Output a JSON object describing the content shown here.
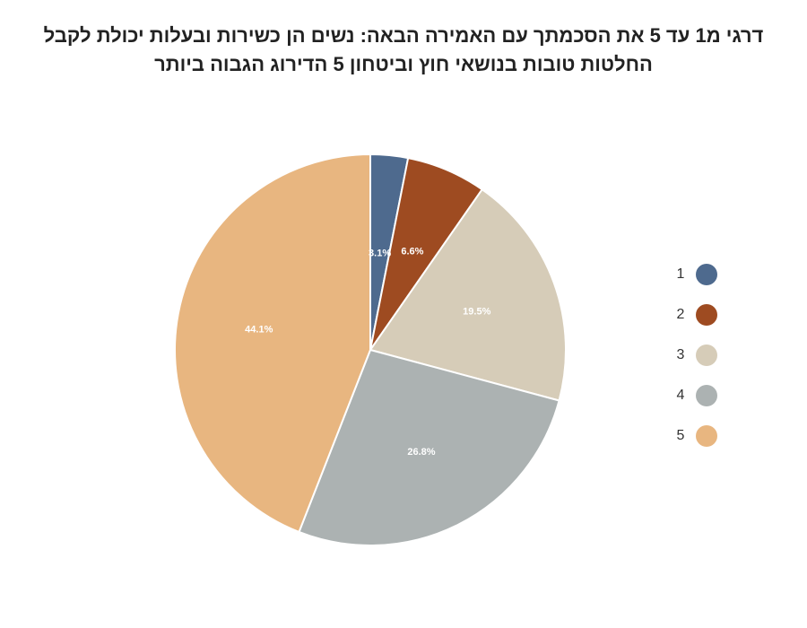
{
  "chart_data": {
    "type": "pie",
    "title": "דרגי מ1 עד 5 את הסכמתך עם האמירה הבאה: נשים הן כשירות ובעלות יכולת לקבל",
    "subtitle": "החלטות טובות בנושאי חוץ וביטחון  5 הדירוג הגבוה ביותר",
    "categories": [
      "1",
      "2",
      "3",
      "4",
      "5"
    ],
    "values": [
      3.1,
      6.6,
      19.5,
      26.8,
      44.1
    ],
    "data_labels": [
      "3.1%",
      "6.6%",
      "19.5%",
      "26.8%",
      "44.1%"
    ],
    "colors": [
      "#4e6a8e",
      "#9e4b21",
      "#d6ccb8",
      "#acb2b2",
      "#e8b680"
    ],
    "legend_position": "right"
  }
}
